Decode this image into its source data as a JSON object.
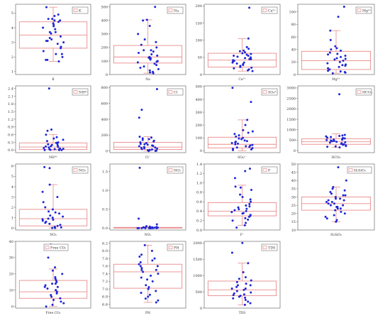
{
  "colors": {
    "box": "#e98b8b",
    "point": "#1f27d6",
    "axis": "#555555"
  },
  "chart_data": [
    {
      "type": "scatter",
      "legend": "K",
      "xlabel": "K",
      "yticks": [
        "1",
        "2",
        "3",
        "4",
        "5"
      ],
      "ylim": [
        0.8,
        5.6
      ],
      "box": {
        "q1": 2.6,
        "median": 3.5,
        "q3": 4.4,
        "whisker_low": 1.7,
        "whisker_high": 5.4
      },
      "values": [
        5.4,
        4.9,
        4.8,
        4.6,
        4.6,
        4.5,
        4.4,
        4.3,
        4.2,
        4.1,
        4.0,
        3.9,
        3.7,
        3.6,
        3.4,
        3.3,
        3.2,
        3.1,
        3.0,
        2.9,
        2.7,
        2.6,
        2.4,
        2.2,
        2.0,
        1.8,
        1.7,
        1.8,
        2.2,
        3.1,
        3.7,
        4.5
      ]
    },
    {
      "type": "scatter",
      "legend": "Na",
      "xlabel": "Na",
      "yticks": [
        "0",
        "100",
        "200",
        "300",
        "400",
        "500"
      ],
      "ylim": [
        0,
        520
      ],
      "box": {
        "q1": 85,
        "median": 130,
        "q3": 215,
        "whisker_low": 10,
        "whisker_high": 405
      },
      "values": [
        500,
        405,
        400,
        360,
        300,
        260,
        240,
        220,
        200,
        180,
        170,
        160,
        150,
        140,
        130,
        125,
        120,
        110,
        100,
        95,
        90,
        80,
        70,
        60,
        50,
        40,
        30,
        20,
        15,
        10,
        120,
        180
      ]
    },
    {
      "type": "scatter",
      "legend": "Ca²⁺",
      "xlabel": "Ca²⁺",
      "yticks": [
        "0",
        "50",
        "100",
        "150",
        "200"
      ],
      "ylim": [
        0,
        205
      ],
      "box": {
        "q1": 22,
        "median": 42,
        "q3": 62,
        "whisker_low": 10,
        "whisker_high": 105
      },
      "values": [
        195,
        105,
        80,
        75,
        70,
        68,
        65,
        62,
        60,
        58,
        55,
        52,
        50,
        48,
        45,
        42,
        40,
        38,
        35,
        32,
        30,
        28,
        25,
        22,
        20,
        18,
        15,
        12,
        10,
        55,
        45,
        35
      ]
    },
    {
      "type": "scatter",
      "legend": "Mg²⁺",
      "xlabel": "Mg²⁺",
      "yticks": [
        "0",
        "20",
        "40",
        "60",
        "80",
        "100"
      ],
      "ylim": [
        0,
        112
      ],
      "box": {
        "q1": 8,
        "median": 22,
        "q3": 37,
        "whisker_low": 2,
        "whisker_high": 70
      },
      "values": [
        108,
        92,
        70,
        55,
        45,
        42,
        40,
        38,
        35,
        33,
        30,
        28,
        26,
        24,
        22,
        20,
        18,
        16,
        14,
        12,
        10,
        8,
        6,
        5,
        4,
        3,
        2,
        15,
        25,
        32
      ]
    },
    {
      "type": "scatter",
      "legend": "NH⁴⁺",
      "xlabel": "NH⁴⁺",
      "yticks": [
        "0.0",
        "0.3",
        "0.6",
        "0.9",
        "1.2",
        "1.5",
        "1.8",
        "2.1",
        "2.4"
      ],
      "ylim": [
        -0.1,
        2.5
      ],
      "box": {
        "q1": 0.02,
        "median": 0.12,
        "q3": 0.28,
        "whisker_low": 0.0,
        "whisker_high": 0.6
      },
      "values": [
        2.4,
        0.8,
        0.75,
        0.6,
        0.5,
        0.45,
        0.4,
        0.35,
        0.3,
        0.28,
        0.25,
        0.2,
        0.18,
        0.15,
        0.12,
        0.1,
        0.08,
        0.06,
        0.05,
        0.04,
        0.03,
        0.02,
        0.01,
        0.0,
        0.0,
        0.0,
        0.22,
        0.14
      ]
    },
    {
      "type": "scatter",
      "legend": "Cl",
      "xlabel": "Cl⁻",
      "yticks": [
        "0",
        "200",
        "400",
        "600",
        "800"
      ],
      "ylim": [
        -20,
        820
      ],
      "box": {
        "q1": 20,
        "median": 50,
        "q3": 110,
        "whisker_low": 0,
        "whisker_high": 180
      },
      "values": [
        780,
        520,
        420,
        180,
        170,
        160,
        150,
        140,
        130,
        110,
        100,
        90,
        80,
        70,
        60,
        50,
        45,
        40,
        35,
        30,
        25,
        20,
        15,
        10,
        5,
        2,
        0,
        65,
        85,
        120
      ]
    },
    {
      "type": "scatter",
      "legend": "SO₄²⁻",
      "xlabel": "SO₄²⁻",
      "yticks": [
        "0",
        "100",
        "200",
        "300",
        "400",
        "500"
      ],
      "ylim": [
        -15,
        505
      ],
      "box": {
        "q1": 22,
        "median": 50,
        "q3": 105,
        "whisker_low": 0,
        "whisker_high": 240
      },
      "values": [
        490,
        380,
        240,
        200,
        160,
        150,
        140,
        130,
        120,
        110,
        100,
        90,
        80,
        70,
        60,
        55,
        50,
        45,
        40,
        35,
        30,
        25,
        20,
        15,
        10,
        5,
        65,
        75,
        95
      ]
    },
    {
      "type": "scatter",
      "legend": "HCO₃",
      "xlabel": "HCO₃",
      "yticks": [
        "0",
        "500",
        "1000",
        "1500",
        "2000",
        "2500",
        "3000"
      ],
      "ylim": [
        -100,
        3100
      ],
      "box": {
        "q1": 300,
        "median": 420,
        "q3": 560,
        "whisker_low": 150,
        "whisker_high": 800
      },
      "values": [
        2700,
        750,
        720,
        700,
        680,
        650,
        620,
        600,
        580,
        550,
        520,
        500,
        480,
        450,
        420,
        400,
        380,
        350,
        320,
        300,
        280,
        250,
        220,
        200,
        180,
        150,
        460,
        530
      ]
    },
    {
      "type": "scatter",
      "legend": "NO₃",
      "xlabel": "NO₃",
      "yticks": [
        "0",
        "1",
        "2",
        "3",
        "4",
        "5",
        "6"
      ],
      "ylim": [
        -0.2,
        6.2
      ],
      "box": {
        "q1": 0.2,
        "median": 0.9,
        "q3": 1.8,
        "whisker_low": 0.0,
        "whisker_high": 4.2
      },
      "values": [
        5.9,
        5.8,
        4.2,
        3.5,
        3.0,
        2.5,
        2.0,
        1.8,
        1.6,
        1.4,
        1.2,
        1.0,
        0.9,
        0.8,
        0.7,
        0.6,
        0.5,
        0.4,
        0.3,
        0.2,
        0.1,
        0.05,
        0.0,
        0.0,
        1.1,
        1.5,
        0.85
      ]
    },
    {
      "type": "scatter",
      "legend": "NO₂",
      "xlabel": "NO₂",
      "yticks": [
        "0.0",
        "0.5",
        "1.0",
        "1.5"
      ],
      "ylim": [
        -0.05,
        1.7
      ],
      "box": {
        "q1": 0.0,
        "median": 0.005,
        "q3": 0.02,
        "whisker_low": 0.0,
        "whisker_high": 0.03
      },
      "values": [
        1.6,
        0.25,
        0.1,
        0.05,
        0.04,
        0.03,
        0.03,
        0.02,
        0.02,
        0.02,
        0.01,
        0.01,
        0.01,
        0.01,
        0.0,
        0.0,
        0.0,
        0.0,
        0.0,
        0.0,
        0.0,
        0.0,
        0.0,
        0.0
      ]
    },
    {
      "type": "scatter",
      "legend": "F",
      "xlabel": "F⁻",
      "yticks": [
        "0.0",
        "0.2",
        "0.4",
        "0.6",
        "0.8",
        "1.0",
        "1.2",
        "1.4"
      ],
      "ylim": [
        0,
        1.4
      ],
      "box": {
        "q1": 0.3,
        "median": 0.4,
        "q3": 0.58,
        "whisker_low": 0.1,
        "whisker_high": 0.95
      },
      "values": [
        1.3,
        1.25,
        1.1,
        0.92,
        0.9,
        0.85,
        0.75,
        0.7,
        0.65,
        0.6,
        0.55,
        0.52,
        0.5,
        0.48,
        0.45,
        0.42,
        0.4,
        0.38,
        0.35,
        0.32,
        0.3,
        0.28,
        0.25,
        0.22,
        0.2,
        0.15,
        0.1,
        0.05,
        0.44,
        0.36
      ]
    },
    {
      "type": "scatter",
      "legend": "H₂SiO₃",
      "xlabel": "H₂SiO₃",
      "yticks": [
        "10",
        "15",
        "20",
        "25",
        "30",
        "35",
        "40",
        "45",
        "50"
      ],
      "ylim": [
        10,
        50
      ],
      "box": {
        "q1": 22,
        "median": 26,
        "q3": 30,
        "whisker_low": 15,
        "whisker_high": 36
      },
      "values": [
        48,
        40,
        36,
        35,
        34,
        33,
        32,
        31,
        30,
        29,
        28,
        28,
        27,
        26,
        26,
        25,
        24,
        24,
        23,
        22,
        21,
        20,
        19,
        18,
        17,
        16,
        15,
        25,
        27,
        29,
        31,
        23
      ]
    },
    {
      "type": "scatter",
      "legend": "Free CO₂",
      "xlabel": "Free CO₂",
      "yticks": [
        "0",
        "10",
        "20",
        "30",
        "40"
      ],
      "ylim": [
        -1,
        40
      ],
      "box": {
        "q1": 5,
        "median": 9,
        "q3": 16,
        "whisker_low": 0,
        "whisker_high": 23
      },
      "values": [
        38,
        30,
        24,
        22,
        20,
        18,
        17,
        16,
        15,
        14,
        13,
        12,
        11,
        10,
        9,
        8,
        7,
        6,
        5,
        4,
        3,
        2,
        1,
        0,
        10,
        12,
        14
      ]
    },
    {
      "type": "scatter",
      "legend": "PH",
      "xlabel": "PH",
      "yticks": [
        "6.6",
        "6.8",
        "7.0",
        "7.2",
        "7.4",
        "7.6",
        "7.8",
        "8.0",
        "8.2"
      ],
      "ylim": [
        6.5,
        8.25
      ],
      "box": {
        "q1": 7.02,
        "median": 7.45,
        "q3": 7.65,
        "whisker_low": 6.65,
        "whisker_high": 8.15
      },
      "values": [
        8.15,
        8.0,
        7.9,
        7.85,
        7.8,
        7.75,
        7.7,
        7.65,
        7.6,
        7.55,
        7.5,
        7.45,
        7.4,
        7.35,
        7.3,
        7.2,
        7.1,
        7.05,
        7.0,
        6.95,
        6.9,
        6.85,
        6.8,
        6.75,
        6.7,
        6.65,
        7.6,
        7.5,
        7.25
      ]
    },
    {
      "type": "scatter",
      "legend": "TDS",
      "xlabel": "TDS",
      "yticks": [
        "0",
        "500",
        "1000",
        "1500",
        "2000"
      ],
      "ylim": [
        0,
        2050
      ],
      "box": {
        "q1": 380,
        "median": 560,
        "q3": 830,
        "whisker_low": 100,
        "whisker_high": 1380
      },
      "values": [
        2000,
        1700,
        1380,
        1100,
        950,
        900,
        850,
        800,
        750,
        700,
        650,
        600,
        560,
        520,
        480,
        450,
        420,
        400,
        380,
        350,
        320,
        300,
        250,
        200,
        150,
        100,
        600,
        700
      ]
    }
  ]
}
